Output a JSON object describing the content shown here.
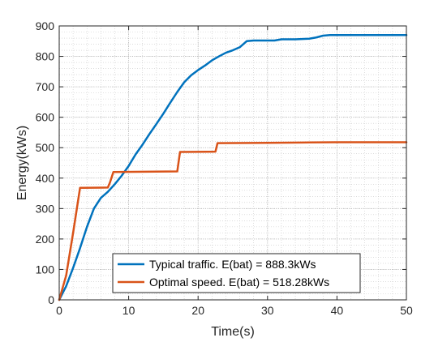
{
  "chart_data": {
    "type": "line",
    "xlabel": "Time(s)",
    "ylabel": "Energy(kWs)",
    "xlim": [
      0,
      50
    ],
    "ylim": [
      0,
      900
    ],
    "x_ticks": [
      0,
      10,
      20,
      30,
      40,
      50
    ],
    "y_ticks": [
      0,
      100,
      200,
      300,
      400,
      500,
      600,
      700,
      800,
      900
    ],
    "grid": true,
    "minor_grid": true,
    "legend_position": "bottom-center",
    "series": [
      {
        "name": "Typical traffic. E(bat) = 888.3kWs",
        "color": "#0072BD",
        "points": [
          [
            0,
            0
          ],
          [
            1,
            45
          ],
          [
            2,
            105
          ],
          [
            3,
            170
          ],
          [
            4,
            240
          ],
          [
            5,
            300
          ],
          [
            6,
            335
          ],
          [
            7,
            355
          ],
          [
            8,
            380
          ],
          [
            9,
            408
          ],
          [
            10,
            440
          ],
          [
            11,
            478
          ],
          [
            12,
            510
          ],
          [
            13,
            545
          ],
          [
            14,
            578
          ],
          [
            15,
            612
          ],
          [
            16,
            648
          ],
          [
            17,
            683
          ],
          [
            18,
            715
          ],
          [
            19,
            738
          ],
          [
            20,
            755
          ],
          [
            21,
            770
          ],
          [
            22,
            787
          ],
          [
            23,
            800
          ],
          [
            24,
            812
          ],
          [
            25,
            820
          ],
          [
            26,
            830
          ],
          [
            27,
            850
          ],
          [
            28,
            852
          ],
          [
            29,
            852
          ],
          [
            30,
            852
          ],
          [
            31,
            852
          ],
          [
            32,
            856
          ],
          [
            33,
            856
          ],
          [
            34,
            856
          ],
          [
            35,
            857
          ],
          [
            36,
            858
          ],
          [
            37,
            862
          ],
          [
            38,
            868
          ],
          [
            39,
            870
          ],
          [
            40,
            870
          ],
          [
            45,
            870
          ],
          [
            50,
            870
          ]
        ]
      },
      {
        "name": "Optimal speed. E(bat) = 518.28kWs",
        "color": "#D95319",
        "points": [
          [
            0,
            0
          ],
          [
            1,
            80
          ],
          [
            2,
            220
          ],
          [
            3,
            368
          ],
          [
            3.5,
            368
          ],
          [
            7,
            369
          ],
          [
            7.3,
            385
          ],
          [
            7.8,
            420
          ],
          [
            17,
            422
          ],
          [
            17.4,
            486
          ],
          [
            22.5,
            487
          ],
          [
            22.8,
            515
          ],
          [
            30,
            516
          ],
          [
            35,
            517
          ],
          [
            40,
            518
          ],
          [
            50,
            518
          ]
        ]
      }
    ]
  }
}
